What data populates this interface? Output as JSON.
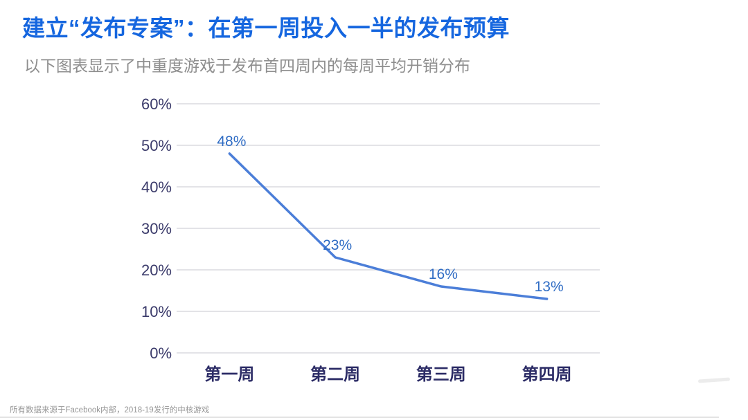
{
  "header": {
    "title": "建立“发布专案”：在第一周投入一半的发布预算",
    "subtitle": "以下图表显示了中重度游戏于发布首四周内的每周平均开销分布"
  },
  "footer": {
    "source_note": "所有数据来源于Facebook内部，2018-19发行的中核游戏"
  },
  "colors": {
    "title_blue": "#1566df",
    "subtitle_gray": "#8e8e8e",
    "line_blue": "#4b7ed8",
    "data_label_blue": "#2f6cc4",
    "axis_tick_navy": "#3a3a6a",
    "x_label_navy": "#2c2c66",
    "gridline_gray": "#e3e3e7",
    "footer_gray": "#969696"
  },
  "chart_data": {
    "type": "line",
    "title": "",
    "xlabel": "",
    "ylabel": "",
    "categories": [
      "第一周",
      "第二周",
      "第三周",
      "第四周"
    ],
    "values": [
      48,
      23,
      16,
      13
    ],
    "data_labels": [
      "48%",
      "23%",
      "16%",
      "13%"
    ],
    "y_ticks": [
      "0%",
      "10%",
      "20%",
      "30%",
      "40%",
      "50%",
      "60%"
    ],
    "y_tick_values": [
      0,
      10,
      20,
      30,
      40,
      50,
      60
    ],
    "ylim": [
      0,
      60
    ],
    "grid": true,
    "legend_position": "none"
  }
}
